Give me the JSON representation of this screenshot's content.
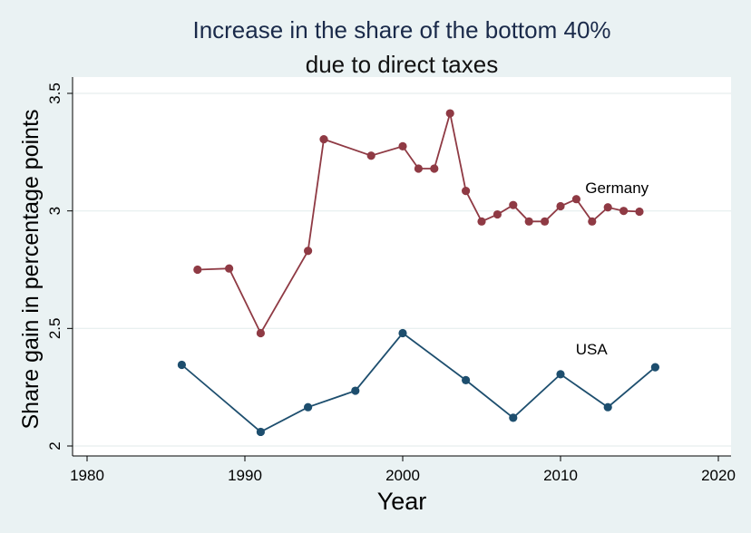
{
  "chart_data": {
    "type": "line",
    "title_line1": "Increase in the share of the bottom 40%",
    "title_line2": "due to direct taxes",
    "xlabel": "Year",
    "ylabel": "Share gain in percentage points",
    "xlim": [
      1980,
      2020
    ],
    "ylim": [
      2,
      3.5
    ],
    "xticks": [
      1980,
      1990,
      2000,
      2010,
      2020
    ],
    "yticks": [
      2,
      2.5,
      3,
      3.5
    ],
    "ytick_labels": [
      "2",
      "2.5",
      "3",
      "3.5"
    ],
    "grid": true,
    "series": [
      {
        "name": "Germany",
        "label": "Germany",
        "color": "#8f3a44",
        "x": [
          1987,
          1989,
          1991,
          1994,
          1995,
          1998,
          2000,
          2001,
          2002,
          2003,
          2004,
          2005,
          2006,
          2007,
          2008,
          2009,
          2010,
          2011,
          2012,
          2013,
          2014,
          2015
        ],
        "values": [
          2.75,
          2.755,
          2.48,
          2.83,
          3.305,
          3.235,
          3.275,
          3.18,
          3.18,
          3.415,
          3.085,
          2.955,
          2.985,
          3.025,
          2.955,
          2.955,
          3.02,
          3.05,
          2.955,
          3.015,
          3.0,
          2.997
        ]
      },
      {
        "name": "USA",
        "label": "USA",
        "color": "#1d4e6e",
        "x": [
          1986,
          1991,
          1994,
          1997,
          2000,
          2004,
          2007,
          2010,
          2013,
          2016
        ],
        "values": [
          2.345,
          2.06,
          2.165,
          2.235,
          2.48,
          2.28,
          2.12,
          2.305,
          2.165,
          2.335
        ]
      }
    ]
  }
}
